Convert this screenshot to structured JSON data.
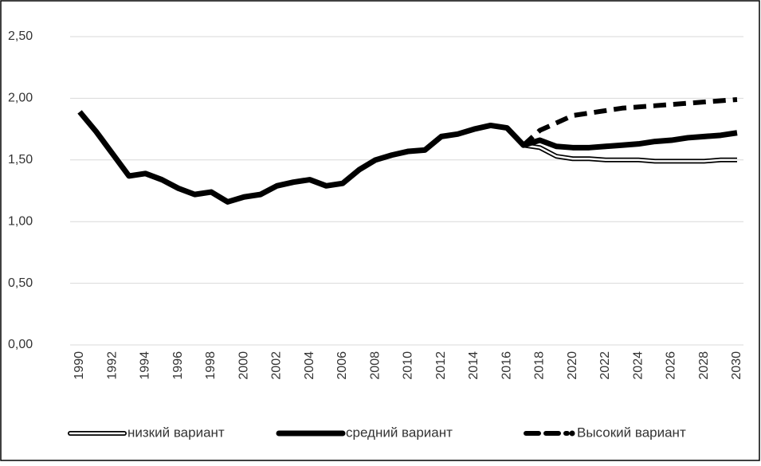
{
  "chart_data": {
    "type": "line",
    "x": [
      1990,
      1991,
      1992,
      1993,
      1994,
      1995,
      1996,
      1997,
      1998,
      1999,
      2000,
      2001,
      2002,
      2003,
      2004,
      2005,
      2006,
      2007,
      2008,
      2009,
      2010,
      2011,
      2012,
      2013,
      2014,
      2015,
      2016,
      2017,
      2018,
      2019,
      2020,
      2021,
      2022,
      2023,
      2024,
      2025,
      2026,
      2027,
      2028,
      2029,
      2030
    ],
    "xlim": [
      1990,
      2030
    ],
    "xticks": [
      1990,
      1992,
      1994,
      1996,
      1998,
      2000,
      2002,
      2004,
      2006,
      2008,
      2010,
      2012,
      2014,
      2016,
      2018,
      2020,
      2022,
      2024,
      2026,
      2028,
      2030
    ],
    "ylim": [
      0,
      2.5
    ],
    "yticks": [
      {
        "value": 0,
        "label": "0,00"
      },
      {
        "value": 0.5,
        "label": "0,50"
      },
      {
        "value": 1,
        "label": "1,00"
      },
      {
        "value": 1.5,
        "label": "1,50"
      },
      {
        "value": 2,
        "label": "2,00"
      },
      {
        "value": 2.5,
        "label": "2,50"
      }
    ],
    "grid": true,
    "legend": "bottom",
    "series": [
      {
        "name": "низкий вариант",
        "color": "#ffffff",
        "style": "outlined",
        "values": [
          null,
          null,
          null,
          null,
          null,
          null,
          null,
          null,
          null,
          null,
          null,
          null,
          null,
          null,
          null,
          null,
          null,
          null,
          null,
          null,
          null,
          null,
          null,
          null,
          null,
          null,
          null,
          1.62,
          1.6,
          1.53,
          1.51,
          1.51,
          1.5,
          1.5,
          1.5,
          1.49,
          1.49,
          1.49,
          1.49,
          1.5,
          1.5
        ]
      },
      {
        "name": "средний вариант",
        "color": "#000000",
        "style": "solid",
        "values": [
          1.89,
          1.73,
          1.55,
          1.37,
          1.39,
          1.34,
          1.27,
          1.22,
          1.24,
          1.16,
          1.2,
          1.22,
          1.29,
          1.32,
          1.34,
          1.29,
          1.31,
          1.42,
          1.5,
          1.54,
          1.57,
          1.58,
          1.69,
          1.71,
          1.75,
          1.78,
          1.76,
          1.62,
          1.66,
          1.61,
          1.6,
          1.6,
          1.61,
          1.62,
          1.63,
          1.65,
          1.66,
          1.68,
          1.69,
          1.7,
          1.72
        ]
      },
      {
        "name": "Высокий вариант",
        "color": "#000000",
        "style": "dashed",
        "values": [
          null,
          null,
          null,
          null,
          null,
          null,
          null,
          null,
          null,
          null,
          null,
          null,
          null,
          null,
          null,
          null,
          null,
          null,
          null,
          null,
          null,
          null,
          null,
          null,
          null,
          null,
          null,
          1.62,
          1.74,
          1.8,
          1.86,
          1.88,
          1.9,
          1.92,
          1.93,
          1.94,
          1.95,
          1.96,
          1.97,
          1.98,
          1.99
        ]
      }
    ]
  }
}
